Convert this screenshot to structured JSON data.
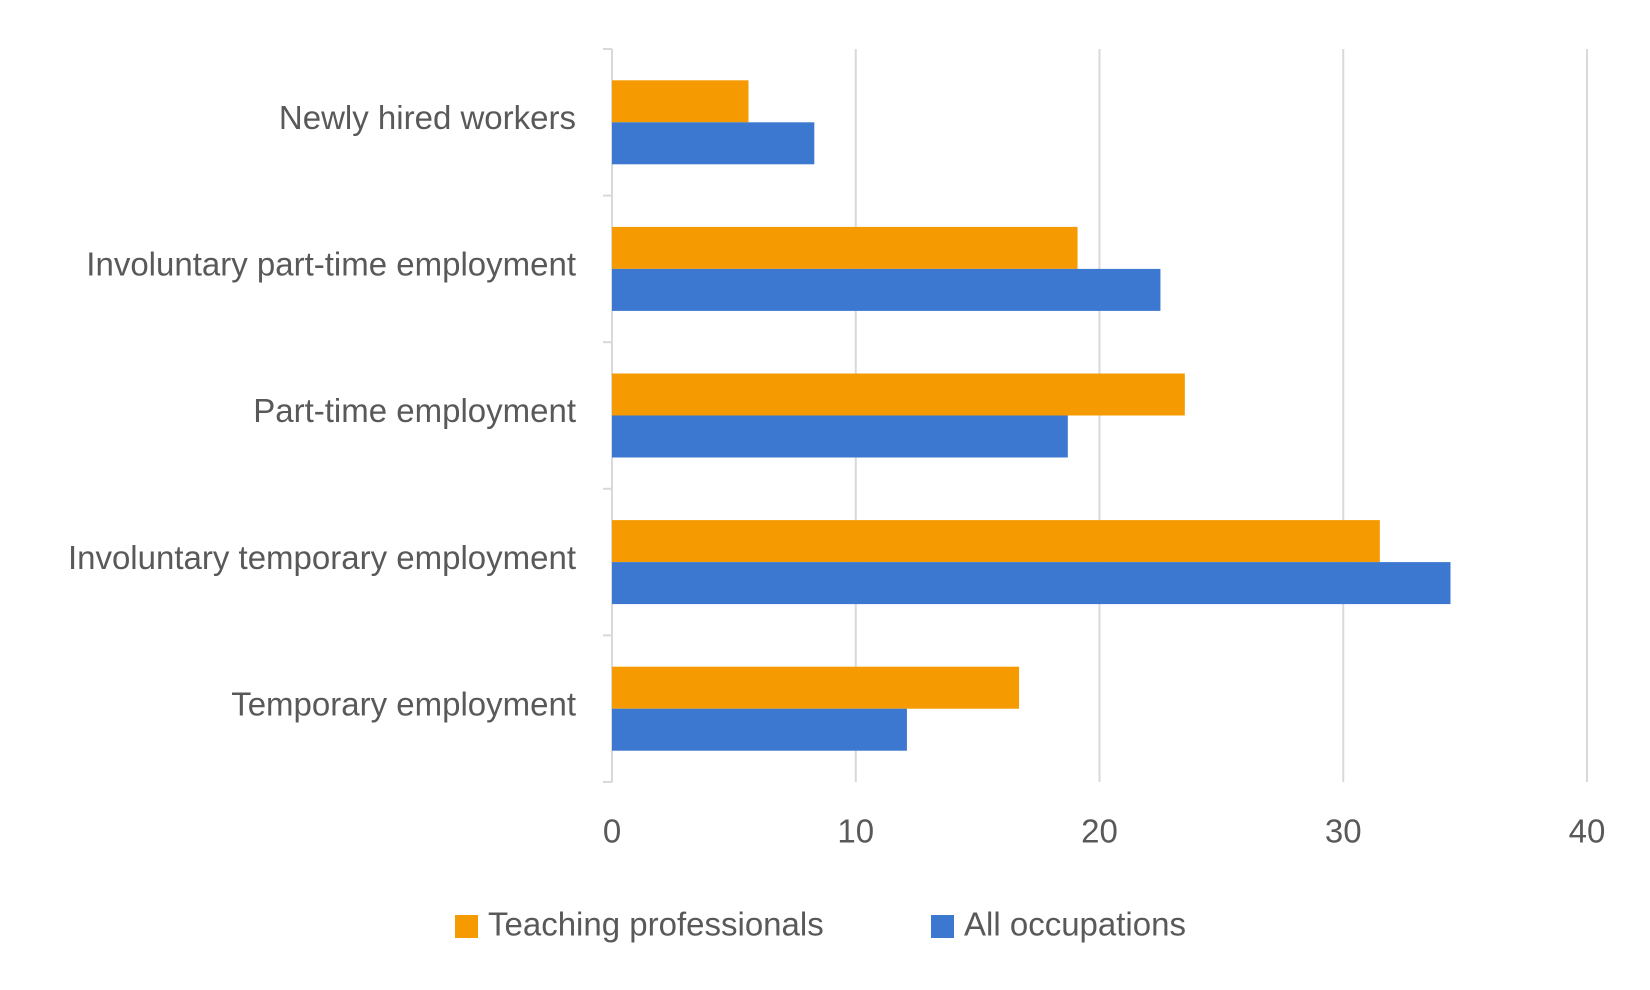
{
  "chart_data": {
    "type": "bar",
    "orientation": "horizontal",
    "categories": [
      "Newly hired workers",
      "Involuntary part-time employment",
      "Part-time employment",
      "Involuntary temporary employment",
      "Temporary employment"
    ],
    "series": [
      {
        "name": "Teaching professionals",
        "color": "#f59a00",
        "values": [
          5.6,
          19.1,
          23.5,
          31.5,
          16.7
        ]
      },
      {
        "name": "All occupations",
        "color": "#3c78d0",
        "values": [
          8.3,
          22.5,
          18.7,
          34.4,
          12.1
        ]
      }
    ],
    "xlim": [
      0,
      40
    ],
    "xticks": [
      0,
      10,
      20,
      30,
      40
    ],
    "grid": true,
    "legend": "bottom"
  }
}
